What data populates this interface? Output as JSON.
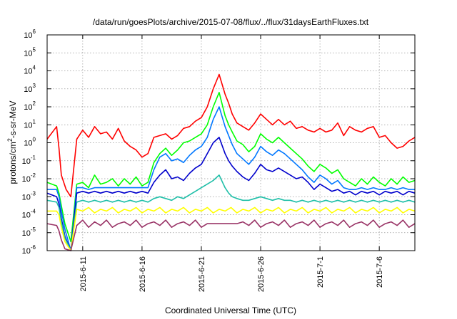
{
  "chart_data": {
    "type": "line",
    "title": "/data/run/goesPlots/archive/2015-07-08/flux/../flux/31daysEarthFluxes.txt",
    "xlabel": "Coordinated Universal Time (UTC)",
    "ylabel_base": "protons/cm",
    "ylabel_exp": "2",
    "ylabel_rest": "-s-sr-MeV",
    "yscale": "log",
    "ylim": [
      1e-06,
      1000000.0
    ],
    "xlim": [
      0,
      31
    ],
    "grid": true,
    "legend": "none",
    "x_ticks": [
      {
        "x": 3,
        "label": "2015-6-11"
      },
      {
        "x": 8,
        "label": "2015-6-16"
      },
      {
        "x": 13,
        "label": "2015-6-21"
      },
      {
        "x": 18,
        "label": "2015-6-26"
      },
      {
        "x": 23,
        "label": "2015-7-1"
      },
      {
        "x": 28,
        "label": "2015-7-6"
      }
    ],
    "y_ticks": [
      {
        "v": -6,
        "label": "10",
        "exp": "-6"
      },
      {
        "v": -5,
        "label": "10",
        "exp": "-5"
      },
      {
        "v": -4,
        "label": "10",
        "exp": "-4"
      },
      {
        "v": -3,
        "label": "10",
        "exp": "-3"
      },
      {
        "v": -2,
        "label": "10",
        "exp": "-2"
      },
      {
        "v": -1,
        "label": "10",
        "exp": "-1"
      },
      {
        "v": 0,
        "label": "10",
        "exp": "0"
      },
      {
        "v": 1,
        "label": "10",
        "exp": "1"
      },
      {
        "v": 2,
        "label": "10",
        "exp": "2"
      },
      {
        "v": 3,
        "label": "10",
        "exp": "3"
      },
      {
        "v": 4,
        "label": "10",
        "exp": "4"
      },
      {
        "v": 5,
        "label": "10",
        "exp": "5"
      },
      {
        "v": 6,
        "label": "10",
        "exp": "6"
      }
    ],
    "series": [
      {
        "color": "#ff0000",
        "x": [
          0,
          0.8,
          1,
          1.2,
          1.6,
          2,
          2.5,
          3,
          3.5,
          4,
          4.5,
          5,
          5.5,
          6,
          6.5,
          7,
          7.5,
          8,
          8.5,
          9,
          9.5,
          10,
          10.5,
          11,
          11.5,
          12,
          12.5,
          13,
          13.5,
          14,
          14.5,
          15,
          15.3,
          15.6,
          16,
          16.5,
          17,
          17.5,
          18,
          18.5,
          19,
          19.5,
          20,
          20.5,
          21,
          21.5,
          22,
          22.5,
          23,
          23.5,
          24,
          24.5,
          25,
          25.5,
          26,
          26.5,
          27,
          27.5,
          28,
          28.5,
          29,
          29.5,
          30,
          30.5,
          31
        ],
        "log10": [
          0.2,
          0.9,
          -0.3,
          -1.8,
          -2.6,
          -3.0,
          0.2,
          0.7,
          0.3,
          0.9,
          0.5,
          0.6,
          0.2,
          0.8,
          0.1,
          -0.2,
          -0.4,
          -0.8,
          -0.6,
          0.3,
          0.4,
          0.5,
          0.2,
          0.4,
          0.8,
          0.9,
          1.2,
          1.4,
          2.0,
          3.0,
          3.8,
          2.7,
          2.2,
          1.6,
          1.1,
          0.9,
          0.7,
          1.1,
          1.6,
          1.3,
          1.0,
          1.3,
          1.0,
          1.2,
          0.8,
          0.9,
          0.7,
          0.6,
          0.8,
          0.6,
          0.7,
          1.1,
          0.4,
          0.9,
          0.7,
          0.6,
          0.8,
          0.9,
          0.3,
          0.4,
          0.0,
          -0.3,
          -0.2,
          0.1,
          0.3
        ]
      },
      {
        "color": "#00ff00",
        "x": [
          0,
          0.8,
          1,
          1.2,
          1.5,
          2,
          2.5,
          3,
          3.5,
          4,
          4.5,
          5,
          5.5,
          6,
          6.5,
          7,
          7.5,
          8,
          8.5,
          9,
          9.5,
          10,
          10.5,
          11,
          11.5,
          12,
          12.5,
          13,
          13.5,
          14,
          14.5,
          15,
          15.3,
          15.6,
          16,
          16.5,
          17,
          17.5,
          18,
          18.5,
          19,
          19.5,
          20,
          20.5,
          21,
          21.5,
          22,
          22.5,
          23,
          23.5,
          24,
          24.5,
          25,
          25.5,
          26,
          26.5,
          27,
          27.5,
          28,
          28.5,
          29,
          29.5,
          30,
          30.5,
          31
        ],
        "log10": [
          -2.2,
          -2.4,
          -2.8,
          -3.5,
          -4.5,
          -5.5,
          -2.3,
          -2.2,
          -2.5,
          -1.8,
          -2.3,
          -2.2,
          -2.0,
          -2.4,
          -2.0,
          -2.3,
          -1.9,
          -2.4,
          -2.2,
          -1.1,
          -0.6,
          -0.3,
          -0.7,
          -0.4,
          0.0,
          0.1,
          0.3,
          0.5,
          1.0,
          2.0,
          2.8,
          1.5,
          1.0,
          0.6,
          0.1,
          -0.1,
          -0.5,
          -0.2,
          0.5,
          0.2,
          0.0,
          0.3,
          0.0,
          -0.3,
          -0.6,
          -0.9,
          -1.3,
          -1.6,
          -1.2,
          -1.4,
          -1.7,
          -1.5,
          -2.0,
          -2.2,
          -2.4,
          -2.0,
          -2.3,
          -1.9,
          -2.2,
          -2.4,
          -2.0,
          -2.3,
          -1.9,
          -2.2,
          -2.1
        ]
      },
      {
        "color": "#0077ff",
        "x": [
          0,
          0.8,
          1,
          1.2,
          1.5,
          2,
          2.5,
          3,
          3.5,
          4,
          4.5,
          5,
          5.5,
          6,
          6.5,
          7,
          7.5,
          8,
          8.5,
          9,
          9.5,
          10,
          10.5,
          11,
          11.5,
          12,
          12.5,
          13,
          13.5,
          14,
          14.5,
          15,
          15.3,
          15.6,
          16,
          16.5,
          17,
          17.5,
          18,
          18.5,
          19,
          19.5,
          20,
          20.5,
          21,
          21.5,
          22,
          22.5,
          23,
          23.5,
          24,
          24.5,
          25,
          25.5,
          26,
          26.5,
          27,
          27.5,
          28,
          28.5,
          29,
          29.5,
          30,
          30.5,
          31
        ],
        "log10": [
          -2.6,
          -2.6,
          -3.0,
          -3.8,
          -4.8,
          -6.0,
          -2.5,
          -2.5,
          -2.6,
          -2.5,
          -2.5,
          -2.5,
          -2.5,
          -2.5,
          -2.5,
          -2.5,
          -2.5,
          -2.5,
          -2.5,
          -1.5,
          -0.8,
          -0.6,
          -1.0,
          -0.9,
          -1.1,
          -0.7,
          -0.4,
          -0.2,
          0.3,
          1.3,
          2.0,
          0.9,
          0.4,
          -0.1,
          -0.6,
          -0.9,
          -1.2,
          -0.8,
          -0.2,
          -0.5,
          -0.7,
          -0.4,
          -0.6,
          -0.9,
          -1.2,
          -1.5,
          -1.9,
          -2.2,
          -1.8,
          -2.0,
          -2.3,
          -2.1,
          -2.5,
          -2.6,
          -2.6,
          -2.5,
          -2.6,
          -2.5,
          -2.6,
          -2.6,
          -2.5,
          -2.6,
          -2.5,
          -2.6,
          -2.6
        ]
      },
      {
        "color": "#0000cc",
        "x": [
          0,
          0.8,
          1,
          1.2,
          1.5,
          2,
          2.5,
          3,
          3.5,
          4,
          4.5,
          5,
          5.5,
          6,
          6.5,
          7,
          7.5,
          8,
          8.5,
          9,
          9.5,
          10,
          10.5,
          11,
          11.5,
          12,
          12.5,
          13,
          13.5,
          14,
          14.5,
          15,
          15.3,
          15.6,
          16,
          16.5,
          17,
          17.5,
          18,
          18.5,
          19,
          19.5,
          20,
          20.5,
          21,
          21.5,
          22,
          22.5,
          23,
          23.5,
          24,
          24.5,
          25,
          25.5,
          26,
          26.5,
          27,
          27.5,
          28,
          28.5,
          29,
          29.5,
          30,
          30.5,
          31
        ],
        "log10": [
          -2.8,
          -3.0,
          -3.4,
          -4.2,
          -5.2,
          -6.0,
          -2.8,
          -2.7,
          -2.8,
          -2.7,
          -2.8,
          -2.7,
          -2.8,
          -2.7,
          -2.8,
          -2.7,
          -2.8,
          -2.7,
          -2.8,
          -2.2,
          -1.8,
          -1.5,
          -2.0,
          -1.9,
          -2.1,
          -1.7,
          -1.4,
          -1.2,
          -0.6,
          0.0,
          0.3,
          -0.6,
          -1.0,
          -1.3,
          -1.6,
          -1.9,
          -2.1,
          -1.7,
          -1.2,
          -1.5,
          -1.6,
          -1.4,
          -1.6,
          -1.8,
          -2.0,
          -1.9,
          -2.2,
          -2.6,
          -2.3,
          -2.5,
          -2.7,
          -2.6,
          -2.8,
          -2.7,
          -2.9,
          -2.7,
          -2.8,
          -2.7,
          -2.9,
          -2.7,
          -2.8,
          -2.7,
          -2.9,
          -2.7,
          -2.8
        ]
      },
      {
        "color": "#1fbfa8",
        "x": [
          0,
          0.8,
          1,
          1.2,
          1.5,
          2,
          2.5,
          3,
          3.5,
          4,
          4.5,
          5,
          5.5,
          6,
          6.5,
          7,
          7.5,
          8,
          8.5,
          9,
          9.5,
          10,
          10.5,
          11,
          11.5,
          12,
          12.5,
          13,
          13.5,
          14,
          14.5,
          15,
          15.3,
          15.6,
          16,
          16.5,
          17,
          17.5,
          18,
          18.5,
          19,
          19.5,
          20,
          20.5,
          21,
          21.5,
          22,
          22.5,
          23,
          23.5,
          24,
          24.5,
          25,
          25.5,
          26,
          26.5,
          27,
          27.5,
          28,
          28.5,
          29,
          29.5,
          30,
          30.5,
          31
        ],
        "log10": [
          -3.2,
          -3.3,
          -3.6,
          -4.4,
          -5.3,
          -6.0,
          -3.3,
          -3.2,
          -3.3,
          -3.2,
          -3.3,
          -3.2,
          -3.3,
          -3.2,
          -3.3,
          -3.2,
          -3.3,
          -3.2,
          -3.3,
          -3.1,
          -3.0,
          -3.1,
          -3.2,
          -3.0,
          -3.1,
          -2.9,
          -2.7,
          -2.5,
          -2.3,
          -2.1,
          -1.8,
          -2.5,
          -2.8,
          -3.0,
          -3.1,
          -3.2,
          -3.2,
          -3.1,
          -3.0,
          -3.1,
          -3.2,
          -3.1,
          -3.2,
          -3.2,
          -3.3,
          -3.2,
          -3.3,
          -3.2,
          -3.3,
          -3.2,
          -3.3,
          -3.2,
          -3.3,
          -3.2,
          -3.3,
          -3.2,
          -3.3,
          -3.2,
          -3.3,
          -3.2,
          -3.3,
          -3.2,
          -3.3,
          -3.2,
          -3.3
        ]
      },
      {
        "color": "#ffff00",
        "x": [
          0,
          0.8,
          1,
          1.2,
          1.5,
          2,
          2.5,
          3,
          3.5,
          4,
          4.5,
          5,
          5.5,
          6,
          6.5,
          7,
          7.5,
          8,
          8.5,
          9,
          9.5,
          10,
          10.5,
          11,
          11.5,
          12,
          12.5,
          13,
          13.5,
          14,
          14.5,
          15,
          15.5,
          16,
          16.5,
          17,
          17.5,
          18,
          18.5,
          19,
          19.5,
          20,
          20.5,
          21,
          21.5,
          22,
          22.5,
          23,
          23.5,
          24,
          24.5,
          25,
          25.5,
          26,
          26.5,
          27,
          27.5,
          28,
          28.5,
          29,
          29.5,
          30,
          30.5,
          31
        ],
        "log10": [
          -3.8,
          -3.8,
          -4.0,
          -4.7,
          -5.5,
          -6.0,
          -3.7,
          -3.8,
          -3.6,
          -3.9,
          -3.7,
          -3.8,
          -3.6,
          -3.9,
          -3.7,
          -3.8,
          -3.6,
          -3.9,
          -3.7,
          -3.8,
          -3.6,
          -3.9,
          -3.7,
          -3.8,
          -3.6,
          -3.9,
          -3.7,
          -3.8,
          -3.6,
          -3.9,
          -3.7,
          -3.8,
          -3.6,
          -3.9,
          -3.7,
          -3.8,
          -3.6,
          -3.9,
          -3.7,
          -3.8,
          -3.6,
          -3.9,
          -3.7,
          -3.8,
          -3.6,
          -3.9,
          -3.7,
          -3.8,
          -3.6,
          -3.9,
          -3.7,
          -3.8,
          -3.6,
          -3.9,
          -3.7,
          -3.8,
          -3.6,
          -3.9,
          -3.7,
          -3.8,
          -3.6,
          -3.9,
          -3.7,
          -3.8
        ]
      },
      {
        "color": "#993366",
        "x": [
          0,
          0.8,
          1,
          1.2,
          1.5,
          2,
          2.5,
          3,
          3.5,
          4,
          4.5,
          5,
          5.5,
          6,
          6.5,
          7,
          7.5,
          8,
          8.5,
          9,
          9.5,
          10,
          10.5,
          11,
          11.5,
          12,
          12.5,
          13,
          13.5,
          14,
          14.5,
          15,
          15.5,
          16,
          16.5,
          17,
          17.5,
          18,
          18.5,
          19,
          19.5,
          20,
          20.5,
          21,
          21.5,
          22,
          22.5,
          23,
          23.5,
          24,
          24.5,
          25,
          25.5,
          26,
          26.5,
          27,
          27.5,
          28,
          28.5,
          29,
          29.5,
          30,
          30.5,
          31
        ],
        "log10": [
          -4.5,
          -4.6,
          -4.9,
          -5.4,
          -5.9,
          -6.0,
          -4.6,
          -4.3,
          -4.7,
          -4.4,
          -4.6,
          -4.3,
          -4.7,
          -4.5,
          -4.4,
          -4.6,
          -4.3,
          -4.7,
          -4.5,
          -4.4,
          -4.6,
          -4.3,
          -4.7,
          -4.5,
          -4.4,
          -4.6,
          -4.3,
          -4.7,
          -4.5,
          -4.5,
          -4.5,
          -4.5,
          -4.5,
          -4.5,
          -4.4,
          -4.6,
          -4.3,
          -4.7,
          -4.5,
          -4.4,
          -4.6,
          -4.3,
          -4.7,
          -4.5,
          -4.4,
          -4.6,
          -4.3,
          -4.7,
          -4.5,
          -4.4,
          -4.6,
          -4.3,
          -4.7,
          -4.5,
          -4.4,
          -4.6,
          -4.3,
          -4.7,
          -4.5,
          -4.4,
          -4.6,
          -4.3,
          -4.7,
          -4.5
        ]
      }
    ]
  }
}
